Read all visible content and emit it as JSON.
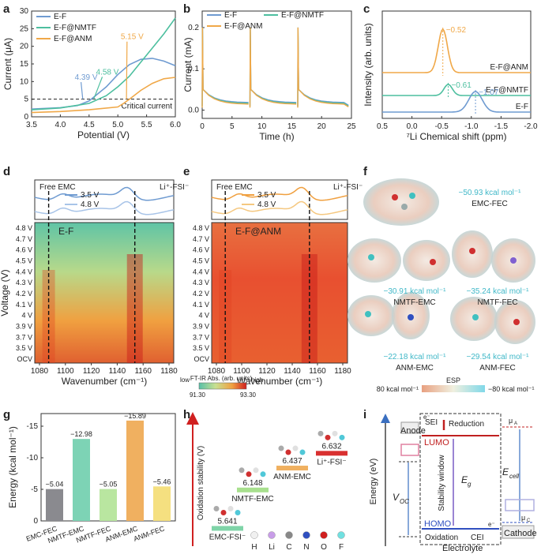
{
  "panel_labels": [
    "a",
    "b",
    "c",
    "d",
    "e",
    "f",
    "g",
    "h",
    "i"
  ],
  "chart_data": [
    {
      "panel": "a",
      "type": "line",
      "xlabel": "Potential (V)",
      "ylabel": "Current (μA)",
      "xlim": [
        3.5,
        6.0
      ],
      "ylim": [
        0,
        30
      ],
      "xticks": [
        "3.5",
        "4.0",
        "4.5",
        "5.0",
        "5.5",
        "6.0"
      ],
      "yticks": [
        "0",
        "5",
        "10",
        "15",
        "20",
        "25",
        "30"
      ],
      "legend": [
        "E-F",
        "E-F@NMTF",
        "E-F@ANM"
      ],
      "colors": [
        "#6f9bd1",
        "#4dbf9f",
        "#f0a848"
      ],
      "series": [
        {
          "name": "E-F",
          "x": [
            3.5,
            4.0,
            4.3,
            4.5,
            4.8,
            5.0,
            5.2,
            5.4,
            5.6,
            5.8,
            6.0
          ],
          "y": [
            2.2,
            2.6,
            3.2,
            4.5,
            8.5,
            12,
            14.8,
            16.3,
            16.6,
            15.8,
            14.5
          ]
        },
        {
          "name": "E-F@NMTF",
          "x": [
            3.5,
            4.0,
            4.5,
            4.8,
            5.0,
            5.2,
            5.4,
            5.6,
            5.8,
            6.0
          ],
          "y": [
            2.0,
            2.5,
            3.8,
            6.0,
            8.5,
            11.5,
            15.5,
            19.5,
            23.5,
            28.0
          ]
        },
        {
          "name": "E-F@ANM",
          "x": [
            3.5,
            4.0,
            4.5,
            5.0,
            5.1,
            5.2,
            5.4,
            5.6,
            5.8,
            6.0
          ],
          "y": [
            1.2,
            1.5,
            2.0,
            2.8,
            3.8,
            5.0,
            7.5,
            9.5,
            10.8,
            11.2
          ]
        }
      ],
      "hline": {
        "y": 5,
        "label": "Critical current"
      },
      "annotations": [
        {
          "text": "4.39 V",
          "color": "#6f9bd1"
        },
        {
          "text": "4.58 V",
          "color": "#4dbf9f"
        },
        {
          "text": "5.15 V",
          "color": "#f0a848"
        }
      ]
    },
    {
      "panel": "b",
      "type": "line",
      "xlabel": "Time (h)",
      "ylabel": "Current (mA)",
      "xlim": [
        0,
        25
      ],
      "ylim": [
        -0.02,
        0.24
      ],
      "xticks": [
        "0",
        "5",
        "10",
        "15",
        "20",
        "25"
      ],
      "yticks": [
        "0.0",
        "0.1",
        "0.2"
      ],
      "legend": [
        "E-F",
        "E-F@NMTF",
        "E-F@ANM"
      ],
      "colors": [
        "#6f9bd1",
        "#4dbf9f",
        "#f0a848"
      ]
    },
    {
      "panel": "c",
      "type": "line",
      "xlabel": "⁷Li Chemical shift (ppm)",
      "ylabel": "Intensity (arb. units)",
      "xlim": [
        0.5,
        -2.0
      ],
      "xticks": [
        "0.5",
        "0.0",
        "-0.5",
        "-1.0",
        "-1.5",
        "-2.0"
      ],
      "series": [
        {
          "name": "E-F@ANM",
          "peak": -0.52,
          "color": "#f0a848"
        },
        {
          "name": "E-F@NMTF",
          "peak": -0.61,
          "color": "#4dbf9f"
        },
        {
          "name": "E-F",
          "peak": -1.07,
          "color": "#6f9bd1"
        }
      ],
      "peak_labels": [
        "−0.52",
        "−0.61",
        "−1.07"
      ]
    },
    {
      "panel": "d",
      "type": "heatmap",
      "title": "E-F",
      "xlabel": "Wavenumber (cm⁻¹)",
      "ylabel": "Voltage (V)",
      "xticks": [
        "1080",
        "1100",
        "1120",
        "1140",
        "1160",
        "1180"
      ],
      "yticks": [
        "4.8 V",
        "4.7 V",
        "4.6 V",
        "4.5 V",
        "4.4 V",
        "4.3 V",
        "4.2 V",
        "4.1 V",
        "4 V",
        "3.9 V",
        "3.7 V",
        "3.5 V",
        "OCV"
      ],
      "top_labels": [
        "Free EMC",
        "Li⁺-FSI⁻"
      ],
      "legend": [
        "3.5 V",
        "4.8 V"
      ]
    },
    {
      "panel": "e",
      "type": "heatmap",
      "title": "E-F@ANM",
      "xlabel": "Wavenumber (cm⁻¹)",
      "xticks": [
        "1080",
        "1100",
        "1120",
        "1140",
        "1160",
        "1180"
      ],
      "yticks": [
        "4.8 V",
        "4.7 V",
        "4.6 V",
        "4.5 V",
        "4.4 V",
        "4.3 V",
        "4.2 V",
        "4.1 V",
        "4 V",
        "3.9 V",
        "3.7 V",
        "3.5 V",
        "OCV"
      ],
      "top_labels": [
        "Free EMC",
        "Li⁺-FSI⁻"
      ],
      "legend": [
        "3.5 V",
        "4.8 V"
      ]
    },
    {
      "panel": "g",
      "type": "bar",
      "ylabel": "Energy (kcal mol⁻¹)",
      "ylim": [
        0,
        -17
      ],
      "yticks": [
        "0",
        "-5",
        "-10",
        "-15"
      ],
      "categories": [
        "EMC-FEC",
        "NMTF-EMC",
        "NMTF-FEC",
        "ANM-EMC",
        "ANM-FEC"
      ],
      "values": [
        -5.04,
        -12.98,
        -5.05,
        -15.89,
        -5.46
      ],
      "value_labels": [
        "−5.04",
        "−12.98",
        "−5.05",
        "−15.89",
        "−5.46"
      ],
      "colors": [
        "#8a8a8f",
        "#7dd3b5",
        "#b9e6a0",
        "#f0b060",
        "#f5e080"
      ]
    },
    {
      "panel": "h",
      "type": "bar",
      "ylabel": "Oxidation stability (V)",
      "categories": [
        "EMC-FSI⁻",
        "NMTF-EMC",
        "ANM-EMC",
        "Li⁺-FSI⁻"
      ],
      "values": [
        5.641,
        6.148,
        6.437,
        6.632
      ],
      "value_labels": [
        "5.641",
        "6.148",
        "6.437",
        "6.632"
      ],
      "colors": [
        "#7fd4a8",
        "#a8e08e",
        "#f0b060",
        "#d93030"
      ]
    }
  ],
  "colorbar_de": {
    "title": "FT-IR Abs. (arb. units)",
    "low": "low",
    "high": "high",
    "min": "91.30",
    "max": "93.30"
  },
  "panel_f": {
    "energies": [
      {
        "name": "EMC-FEC",
        "value": "−50.93 kcal mol⁻¹"
      },
      {
        "name": "NMTF-EMC",
        "value": "−30.91 kcal mol⁻¹"
      },
      {
        "name": "NMTF-FEC",
        "value": "−35.24 kcal mol⁻¹"
      },
      {
        "name": "ANM-EMC",
        "value": "−22.18 kcal mol⁻¹"
      },
      {
        "name": "ANM-FEC",
        "value": "−29.54 kcal mol⁻¹"
      }
    ],
    "esp_title": "ESP",
    "esp_min": "80 kcal mol⁻¹",
    "esp_max": "−80 kcal mol⁻¹"
  },
  "panel_h_atoms": [
    "H",
    "Li",
    "C",
    "N",
    "O",
    "F"
  ],
  "panel_i": {
    "ylabel": "Energy (eV)",
    "anode": "Anode",
    "cathode": "Cathode",
    "sei": "SEI",
    "reduction": "Reduction",
    "lumo": "LUMO",
    "homo": "HOMO",
    "oxidation": "Oxidation",
    "cei": "CEI",
    "electrolyte": "Electrolyte",
    "stability": "Stability window",
    "eg": "E",
    "eg_sub": "g",
    "voc": "V",
    "voc_sub": "OC",
    "ecell": "E",
    "ecell_sub": "cell",
    "mua": "μ",
    "mua_sub": "A",
    "muc": "μ",
    "muc_sub": "C",
    "e1": "e⁻",
    "e2": "e⁻"
  }
}
